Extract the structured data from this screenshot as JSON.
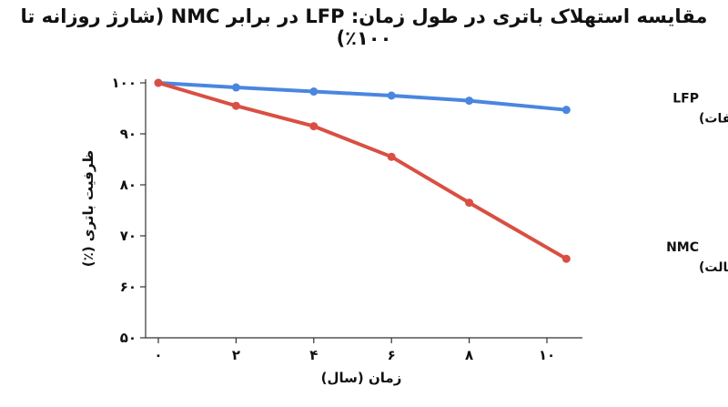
{
  "chart_data": {
    "type": "line",
    "title": "مقایسه استهلاک باتری در طول زمان: LFP در برابر NMC (شارژ روزانه تا ۱۰۰٪)",
    "xlabel": "زمان (سال)",
    "ylabel": "ظرفیت باتری (٪)",
    "x_ticks": [
      0,
      2,
      4,
      6,
      8,
      10
    ],
    "x_tick_labels": [
      "۰",
      "۲",
      "۴",
      "۶",
      "۸",
      "۱۰"
    ],
    "y_ticks": [
      50,
      60,
      70,
      80,
      90,
      100
    ],
    "y_tick_labels": [
      "۵۰",
      "۶۰",
      "۷۰",
      "۸۰",
      "۹۰",
      "۱۰۰"
    ],
    "xlim": [
      0,
      10.5
    ],
    "ylim": [
      50,
      100
    ],
    "grid": false,
    "legend": "inline-right",
    "series": [
      {
        "name": "LFP",
        "subtitle": "(لیتیوم آهن فسفات)",
        "color": "#4a86e0",
        "x": [
          0,
          2,
          4,
          6,
          8,
          10.5
        ],
        "values": [
          100,
          99.1,
          98.3,
          97.5,
          96.5,
          94.7
        ]
      },
      {
        "name": "NMC",
        "subtitle": "(نیکل منگنز کبالت)",
        "color": "#d94f43",
        "x": [
          0,
          2,
          4,
          6,
          8,
          10.5
        ],
        "values": [
          100,
          95.5,
          91.5,
          85.5,
          76.5,
          65.5
        ]
      }
    ]
  }
}
